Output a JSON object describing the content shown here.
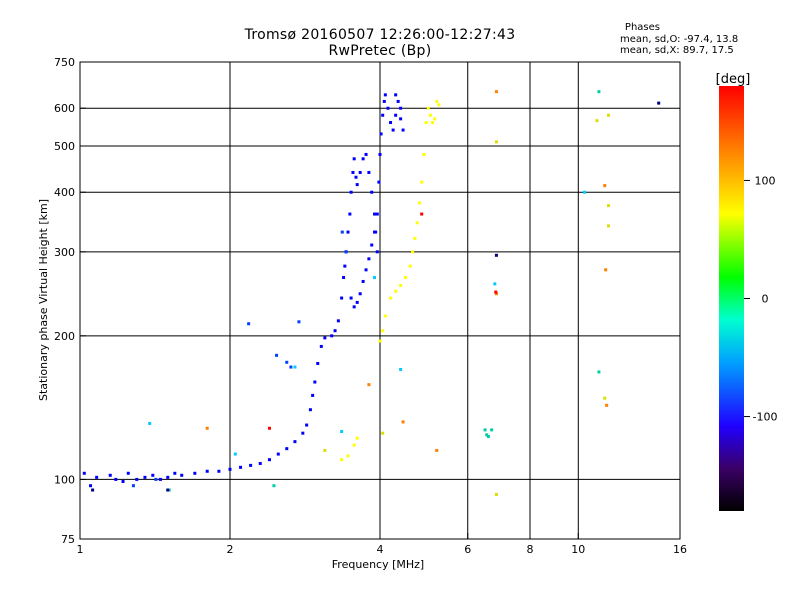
{
  "title_line1": "Tromsø 20160507 12:26:00-12:27:43",
  "title_line2": "RwPretec (Bp)",
  "phases": {
    "heading": "Phases",
    "o_mode": "mean, sd,O: -97.4, 13.8",
    "x_mode": "mean, sd,X:  89.7, 17.5"
  },
  "colorbar": {
    "label": "[deg]",
    "ticks": [
      "100",
      "0",
      "-100"
    ],
    "tick_values": [
      100,
      0,
      -100
    ],
    "range": [
      -180,
      180
    ]
  },
  "chart_data": {
    "type": "scatter",
    "xlabel": "Frequency [MHz]",
    "ylabel": "Stationary phase Virtual Height [km]",
    "xscale": "log",
    "yscale": "log",
    "xlim": [
      1,
      16
    ],
    "ylim": [
      75,
      750
    ],
    "xticks": [
      1,
      2,
      4,
      6,
      8,
      10,
      16
    ],
    "xtick_labels": [
      "1",
      "2",
      "4",
      "6",
      "8",
      "10",
      "16"
    ],
    "yticks": [
      75,
      100,
      200,
      300,
      400,
      500,
      600,
      750
    ],
    "ytick_labels": [
      "75",
      "100",
      "200",
      "300",
      "400",
      "500",
      "600",
      "750"
    ],
    "grid_x": [
      2,
      4,
      6,
      8,
      10
    ],
    "grid_y": [
      100,
      200,
      300,
      400,
      500,
      600
    ],
    "series": [
      {
        "color": "#0000ff",
        "points": [
          [
            1.02,
            103
          ],
          [
            1.05,
            97
          ],
          [
            1.08,
            101
          ],
          [
            1.15,
            102
          ],
          [
            1.18,
            100
          ],
          [
            1.22,
            99
          ],
          [
            1.25,
            103
          ],
          [
            1.3,
            100
          ],
          [
            1.35,
            101
          ],
          [
            1.4,
            102
          ],
          [
            1.45,
            100
          ],
          [
            1.5,
            101
          ],
          [
            1.55,
            103
          ],
          [
            1.6,
            102
          ],
          [
            1.7,
            103
          ],
          [
            1.8,
            104
          ],
          [
            1.9,
            104
          ],
          [
            2.0,
            105
          ],
          [
            2.1,
            106
          ],
          [
            2.2,
            107
          ],
          [
            2.3,
            108
          ],
          [
            2.4,
            110
          ],
          [
            2.5,
            113
          ],
          [
            2.6,
            116
          ],
          [
            2.7,
            120
          ],
          [
            2.8,
            125
          ],
          [
            2.85,
            130
          ],
          [
            2.9,
            140
          ],
          [
            2.93,
            150
          ],
          [
            2.96,
            160
          ],
          [
            3.0,
            175
          ],
          [
            3.05,
            190
          ],
          [
            3.1,
            198
          ],
          [
            3.2,
            200
          ],
          [
            3.25,
            205
          ],
          [
            3.3,
            215
          ],
          [
            3.35,
            240
          ],
          [
            3.38,
            265
          ],
          [
            3.4,
            280
          ],
          [
            3.42,
            300
          ],
          [
            3.45,
            330
          ],
          [
            3.48,
            360
          ],
          [
            3.5,
            400
          ],
          [
            3.53,
            440
          ],
          [
            3.55,
            470
          ],
          [
            3.58,
            430
          ],
          [
            3.6,
            415
          ],
          [
            3.65,
            440
          ],
          [
            3.7,
            470
          ],
          [
            3.75,
            480
          ],
          [
            3.8,
            440
          ],
          [
            3.85,
            400
          ],
          [
            3.9,
            360
          ],
          [
            3.92,
            330
          ],
          [
            3.95,
            300
          ],
          [
            3.5,
            240
          ],
          [
            3.55,
            230
          ],
          [
            3.6,
            235
          ],
          [
            3.65,
            245
          ],
          [
            3.7,
            260
          ],
          [
            3.75,
            275
          ],
          [
            3.8,
            290
          ],
          [
            3.85,
            310
          ],
          [
            3.9,
            330
          ],
          [
            3.95,
            360
          ],
          [
            3.98,
            420
          ],
          [
            4.0,
            480
          ],
          [
            4.02,
            530
          ],
          [
            4.05,
            580
          ],
          [
            4.08,
            620
          ],
          [
            4.1,
            640
          ],
          [
            4.15,
            600
          ],
          [
            4.2,
            560
          ],
          [
            4.25,
            540
          ],
          [
            4.3,
            580
          ],
          [
            4.35,
            620
          ],
          [
            4.4,
            570
          ],
          [
            4.45,
            540
          ],
          [
            4.4,
            600
          ],
          [
            4.3,
            640
          ]
        ]
      },
      {
        "color": "#0040ff",
        "points": [
          [
            2.18,
            212
          ],
          [
            2.48,
            182
          ],
          [
            2.6,
            176
          ],
          [
            2.75,
            214
          ],
          [
            2.65,
            172
          ],
          [
            1.28,
            97
          ],
          [
            1.42,
            100
          ],
          [
            3.36,
            330
          ],
          [
            3.42,
            300
          ]
        ]
      },
      {
        "color": "#ffff00",
        "points": [
          [
            4.0,
            195
          ],
          [
            4.05,
            205
          ],
          [
            4.1,
            220
          ],
          [
            4.2,
            240
          ],
          [
            4.3,
            248
          ],
          [
            4.4,
            255
          ],
          [
            4.5,
            265
          ],
          [
            4.6,
            280
          ],
          [
            4.65,
            300
          ],
          [
            4.7,
            320
          ],
          [
            4.75,
            345
          ],
          [
            4.8,
            380
          ],
          [
            4.85,
            420
          ],
          [
            4.9,
            480
          ],
          [
            4.95,
            560
          ],
          [
            5.0,
            600
          ],
          [
            5.05,
            580
          ],
          [
            5.1,
            560
          ],
          [
            5.15,
            570
          ],
          [
            5.2,
            620
          ],
          [
            5.25,
            610
          ],
          [
            3.35,
            110
          ],
          [
            3.45,
            112
          ],
          [
            3.55,
            118
          ],
          [
            3.6,
            122
          ]
        ]
      },
      {
        "color": "#00ccff",
        "points": [
          [
            1.38,
            131
          ],
          [
            2.05,
            113
          ],
          [
            2.7,
            172
          ],
          [
            6.8,
            257
          ],
          [
            10.3,
            400
          ],
          [
            3.35,
            126
          ],
          [
            3.9,
            265
          ],
          [
            4.4,
            170
          ]
        ]
      },
      {
        "color": "#ff8000",
        "points": [
          [
            1.8,
            128
          ],
          [
            3.8,
            158
          ],
          [
            4.45,
            132
          ],
          [
            5.2,
            115
          ],
          [
            6.85,
            650
          ],
          [
            11.3,
            413
          ],
          [
            11.35,
            275
          ],
          [
            11.4,
            143
          ],
          [
            6.85,
            245
          ]
        ]
      },
      {
        "color": "#ff0000",
        "points": [
          [
            2.4,
            128
          ],
          [
            4.85,
            360
          ],
          [
            6.83,
            247
          ]
        ]
      },
      {
        "color": "#dddd00",
        "points": [
          [
            6.85,
            510
          ],
          [
            6.85,
            93
          ],
          [
            10.9,
            565
          ],
          [
            11.5,
            580
          ],
          [
            11.5,
            375
          ],
          [
            11.5,
            340
          ],
          [
            3.1,
            115
          ],
          [
            11.3,
            148
          ],
          [
            4.05,
            125
          ]
        ]
      },
      {
        "color": "#00ccaa",
        "points": [
          [
            6.5,
            127
          ],
          [
            6.6,
            123
          ],
          [
            6.7,
            127
          ],
          [
            6.55,
            124
          ],
          [
            11.0,
            168
          ],
          [
            11.0,
            650
          ],
          [
            2.45,
            97
          ],
          [
            1.51,
            95
          ]
        ]
      },
      {
        "color": "#000080",
        "points": [
          [
            6.85,
            295
          ],
          [
            14.5,
            615
          ],
          [
            1.06,
            95
          ],
          [
            1.5,
            95
          ]
        ]
      }
    ]
  }
}
